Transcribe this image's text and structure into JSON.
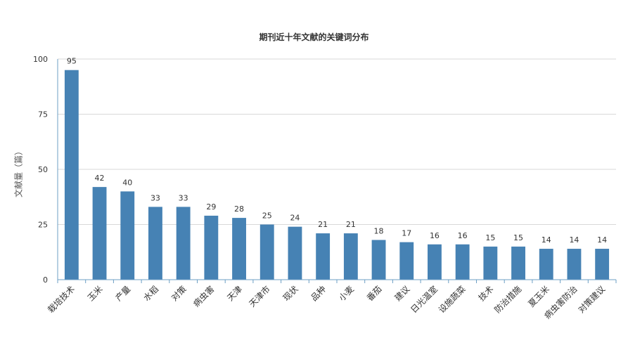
{
  "chart_data": {
    "type": "bar",
    "title": "期刊近十年文献的关键词分布",
    "xlabel": "",
    "ylabel": "文献量（篇）",
    "ylim": [
      0,
      100
    ],
    "yticks": [
      0,
      25,
      50,
      75,
      100
    ],
    "grid": true,
    "legend": "none",
    "categories": [
      "栽培技术",
      "玉米",
      "产量",
      "水稻",
      "对策",
      "病虫害",
      "天津",
      "天津市",
      "现状",
      "品种",
      "小麦",
      "番茄",
      "建议",
      "日光温室",
      "设施蔬菜",
      "技术",
      "防治措施",
      "夏玉米",
      "病虫害防治",
      "对策建议"
    ],
    "values": [
      95,
      42,
      40,
      33,
      33,
      29,
      28,
      25,
      24,
      21,
      21,
      18,
      17,
      16,
      16,
      15,
      15,
      14,
      14,
      14
    ],
    "colors": {
      "bar": "#4682B4",
      "grid": "#d8d8d8",
      "axis": "#6c9fc4",
      "text": "#333333"
    }
  }
}
